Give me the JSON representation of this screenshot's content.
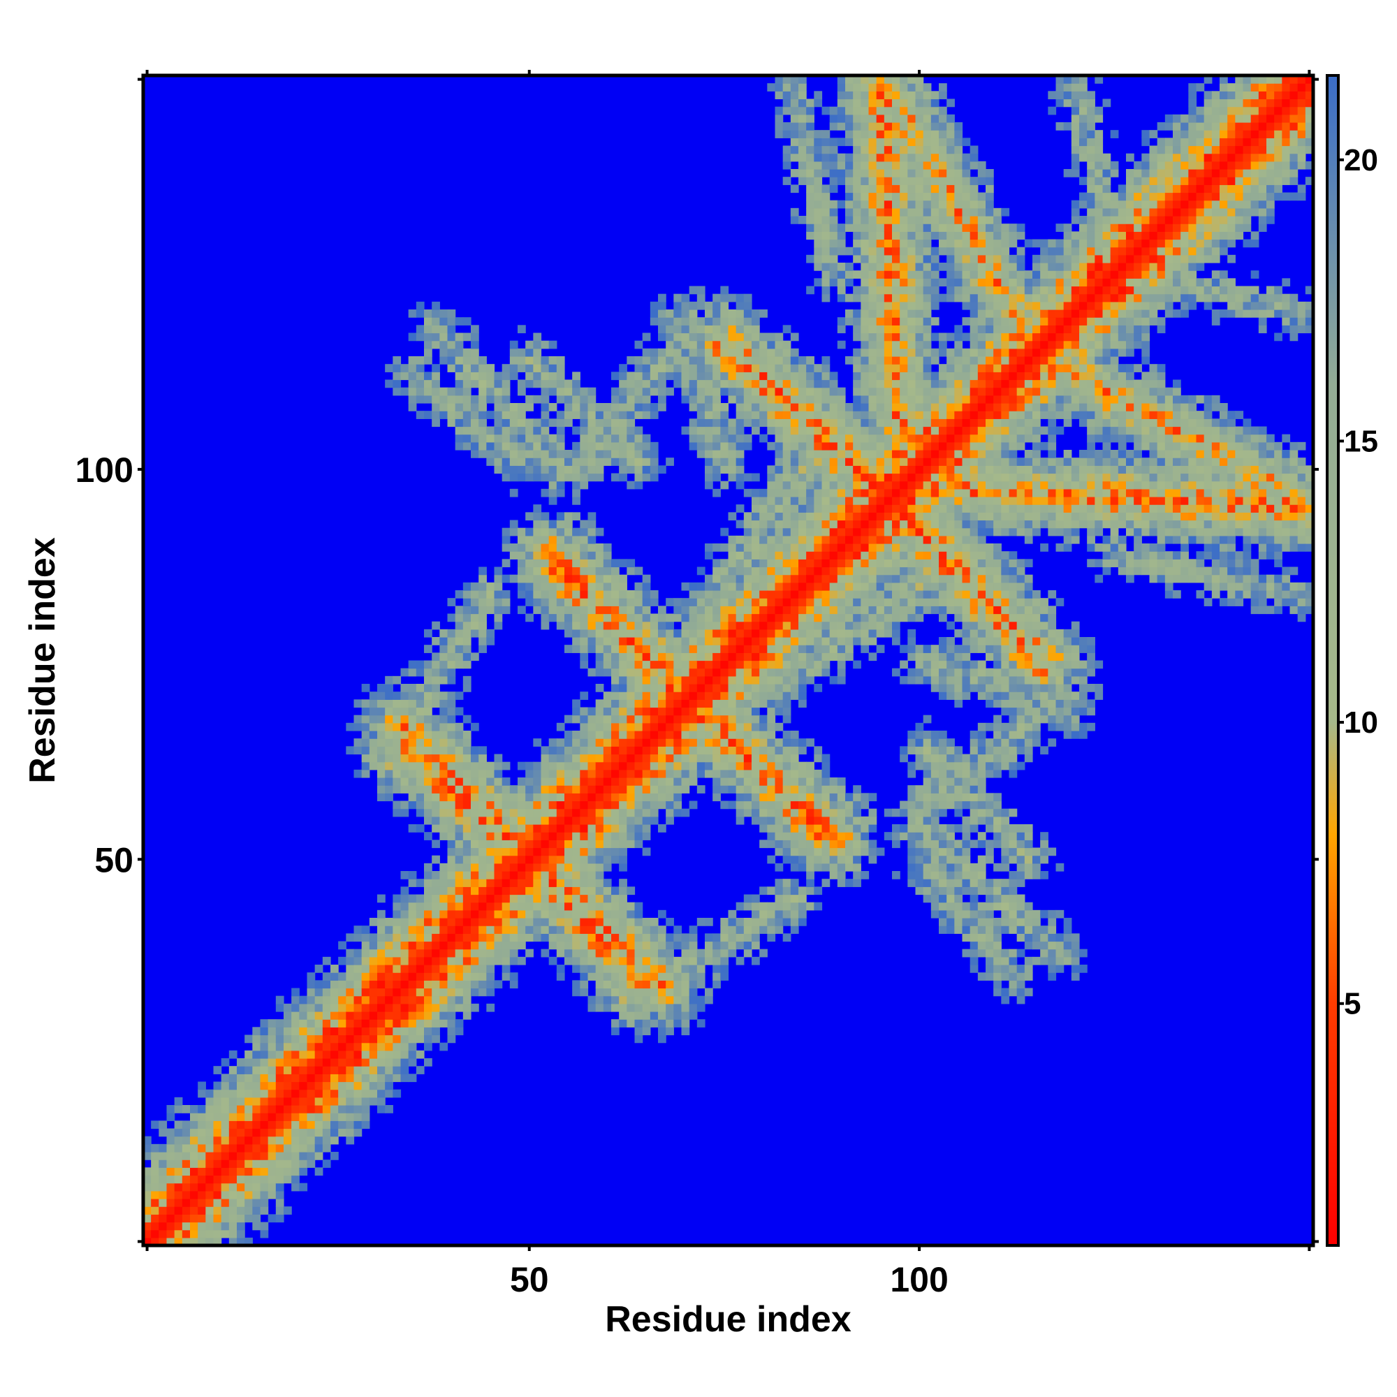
{
  "chart_data": {
    "type": "heatmap",
    "title": "",
    "xlabel": "Residue index",
    "ylabel": "Residue index",
    "n_residues": 150,
    "xlim": [
      1,
      150
    ],
    "ylim": [
      1,
      150
    ],
    "x_ticks": [
      50,
      100
    ],
    "y_ticks": [
      50,
      100
    ],
    "colorbar": {
      "range": [
        0.7,
        21.5
      ],
      "ticks": [
        5,
        10,
        15,
        20
      ],
      "stops": [
        {
          "value": 0.7,
          "color": "#ff0000"
        },
        {
          "value": 5.0,
          "color": "#ff3c00"
        },
        {
          "value": 8.0,
          "color": "#ffa500"
        },
        {
          "value": 10.0,
          "color": "#a6b98a"
        },
        {
          "value": 16.0,
          "color": "#93ac95"
        },
        {
          "value": 21.5,
          "color": "#3b6dc8"
        }
      ],
      "saturation_color": "#0000f5"
    },
    "matrix_description": "Symmetric residue distance map: diagonal band near 0, secondary contact strips near 8-20, background saturated blue",
    "contact_strips": [
      {
        "from": [
          34,
          64
        ],
        "to": [
          53,
          47
        ],
        "distance": 7
      },
      {
        "from": [
          53,
          47
        ],
        "to": [
          67,
          34
        ],
        "distance": 7
      },
      {
        "from": [
          53,
          88
        ],
        "to": [
          70,
          71
        ],
        "distance": 7
      },
      {
        "from": [
          70,
          71
        ],
        "to": [
          89,
          53
        ],
        "distance": 7
      },
      {
        "from": [
          75,
          116
        ],
        "to": [
          94,
          98
        ],
        "distance": 7
      },
      {
        "from": [
          94,
          98
        ],
        "to": [
          112,
          80
        ],
        "distance": 7
      },
      {
        "from": [
          94,
          98
        ],
        "to": [
          151,
          95
        ],
        "distance": 7
      },
      {
        "from": [
          96,
          149
        ],
        "to": [
          112,
          120
        ],
        "distance": 8
      },
      {
        "from": [
          86,
          100
        ],
        "to": [
          101,
          85
        ],
        "distance": 13
      },
      {
        "from": [
          64,
          61
        ],
        "to": [
          100,
          85
        ],
        "distance": 13
      },
      {
        "from": [
          101,
          75
        ],
        "to": [
          120,
          70
        ],
        "distance": 14
      },
      {
        "from": [
          38,
          118
        ],
        "to": [
          54,
          100
        ],
        "distance": 14
      },
      {
        "from": [
          56,
          100
        ],
        "to": [
          70,
          117
        ],
        "distance": 14
      },
      {
        "from": [
          101,
          64
        ],
        "to": [
          114,
          50
        ],
        "distance": 14
      },
      {
        "from": [
          100,
          50
        ],
        "to": [
          112,
          35
        ],
        "distance": 15
      },
      {
        "from": [
          45,
          84
        ],
        "to": [
          36,
          70
        ],
        "distance": 14
      },
      {
        "from": [
          89,
          125
        ],
        "to": [
          84,
          148
        ],
        "distance": 15
      },
      {
        "from": [
          120,
          148
        ],
        "to": [
          125,
          129
        ],
        "distance": 15
      }
    ]
  }
}
